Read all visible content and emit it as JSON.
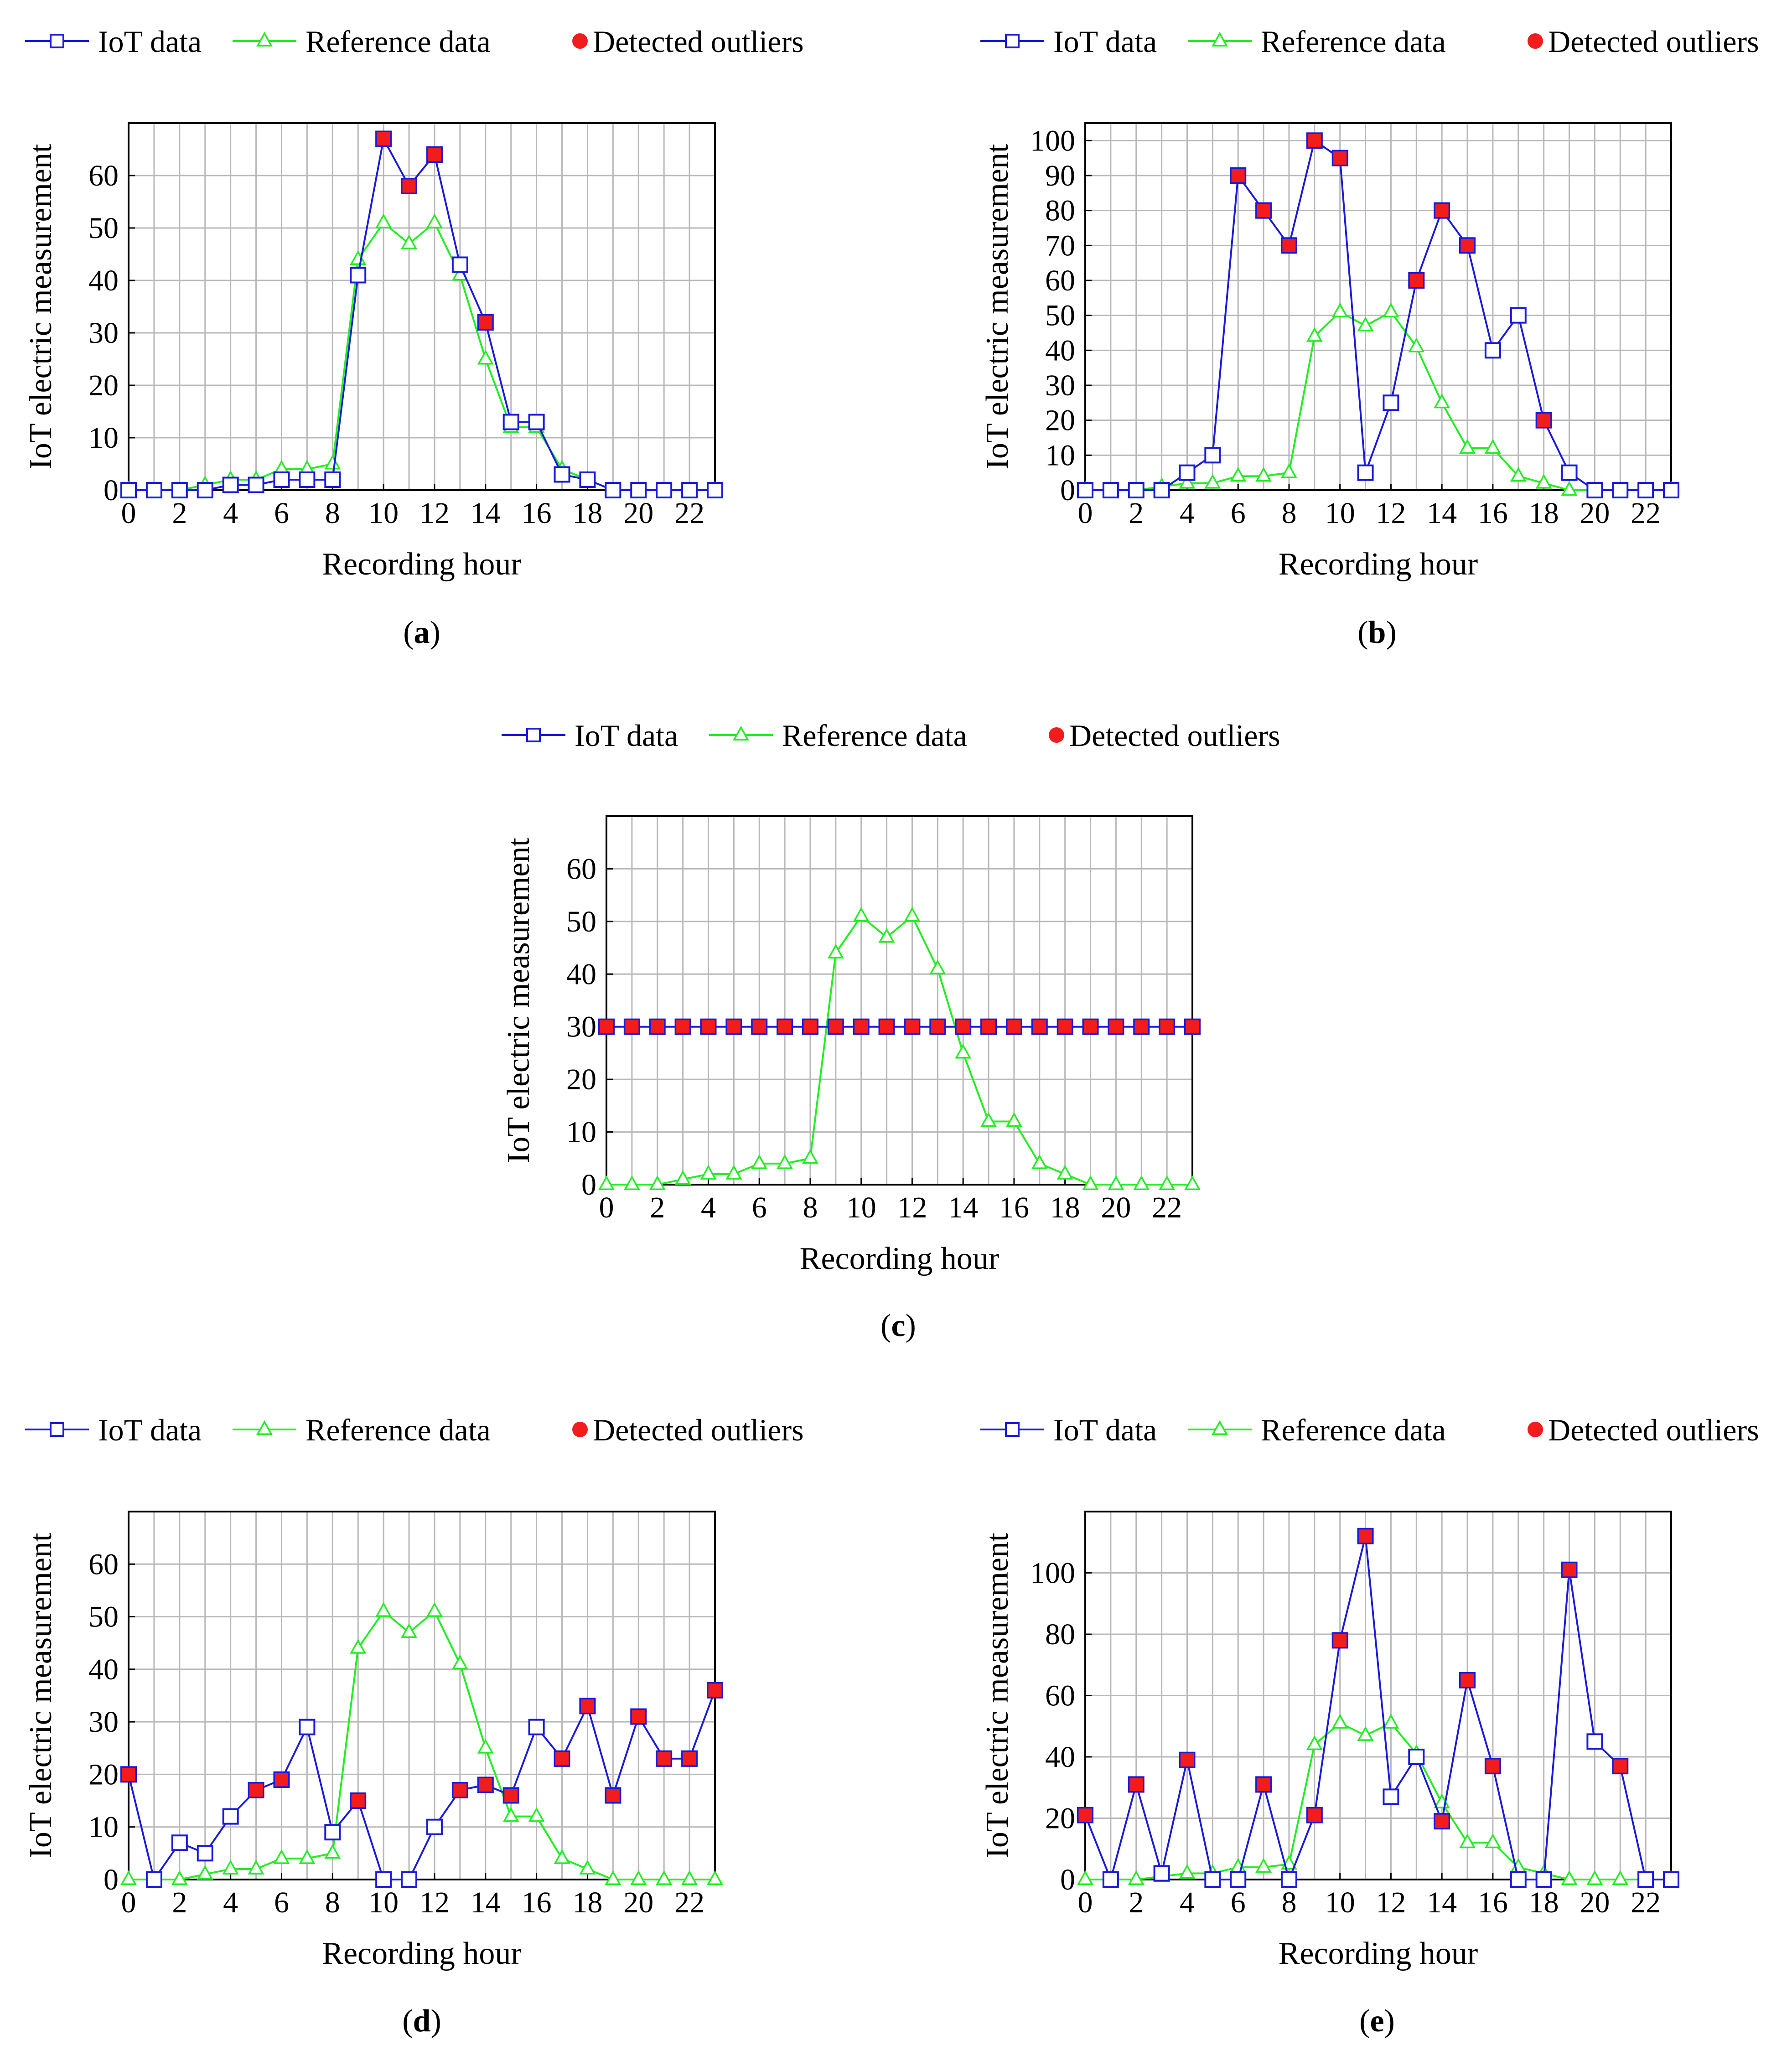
{
  "colors": {
    "iot": "#1a1adc",
    "reference": "#22ee22",
    "outlier": "#f21c1c",
    "grid": "#b8b8b8",
    "axis": "#000000"
  },
  "legend": {
    "iot_label": "IoT data",
    "reference_label": "Reference data",
    "outlier_label": "Detected outliers"
  },
  "chart_data": [
    {
      "panel": "a",
      "caption": "a",
      "type": "line",
      "xlabel": "Recording hour",
      "ylabel": "IoT electric measurement",
      "xlim": [
        0,
        23
      ],
      "ylim": [
        0,
        70
      ],
      "xticks": [
        0,
        2,
        4,
        6,
        8,
        10,
        12,
        14,
        16,
        18,
        20,
        22
      ],
      "yticks": [
        0,
        10,
        20,
        30,
        40,
        50,
        60
      ],
      "grid": true,
      "legend_position": "top",
      "x": [
        0,
        1,
        2,
        3,
        4,
        5,
        6,
        7,
        8,
        9,
        10,
        11,
        12,
        13,
        14,
        15,
        16,
        17,
        18,
        19,
        20,
        21,
        22,
        23
      ],
      "series": [
        {
          "name": "IoT data",
          "values": [
            0,
            0,
            0,
            0,
            1,
            1,
            2,
            2,
            2,
            41,
            67,
            58,
            64,
            43,
            32,
            13,
            13,
            3,
            2,
            0,
            0,
            0,
            0,
            0
          ]
        },
        {
          "name": "Reference data",
          "values": [
            0,
            0,
            0,
            1,
            2,
            2,
            4,
            4,
            5,
            44,
            51,
            47,
            51,
            41,
            25,
            12,
            12,
            4,
            2,
            0,
            0,
            0,
            0,
            0
          ]
        }
      ],
      "outliers": {
        "x": [
          10,
          11,
          12,
          14
        ],
        "values": [
          67,
          58,
          64,
          32
        ]
      }
    },
    {
      "panel": "b",
      "caption": "b",
      "type": "line",
      "xlabel": "Recording hour",
      "ylabel": "IoT electric measurement",
      "xlim": [
        0,
        23
      ],
      "ylim": [
        0,
        105
      ],
      "xticks": [
        0,
        2,
        4,
        6,
        8,
        10,
        12,
        14,
        16,
        18,
        20,
        22
      ],
      "yticks": [
        0,
        10,
        20,
        30,
        40,
        50,
        60,
        70,
        80,
        90,
        100
      ],
      "grid": true,
      "legend_position": "top",
      "x": [
        0,
        1,
        2,
        3,
        4,
        5,
        6,
        7,
        8,
        9,
        10,
        11,
        12,
        13,
        14,
        15,
        16,
        17,
        18,
        19,
        20,
        21,
        22,
        23
      ],
      "series": [
        {
          "name": "IoT data",
          "values": [
            0,
            0,
            0,
            0,
            5,
            10,
            90,
            80,
            70,
            100,
            95,
            5,
            25,
            60,
            80,
            70,
            40,
            50,
            20,
            5,
            0,
            0,
            0,
            0
          ]
        },
        {
          "name": "Reference data",
          "values": [
            0,
            0,
            0,
            1,
            2,
            2,
            4,
            4,
            5,
            44,
            51,
            47,
            51,
            41,
            25,
            12,
            12,
            4,
            2,
            0,
            0,
            0,
            0,
            0
          ]
        }
      ],
      "outliers": {
        "x": [
          6,
          7,
          8,
          9,
          10,
          13,
          14,
          15,
          18
        ],
        "values": [
          90,
          80,
          70,
          100,
          95,
          60,
          80,
          70,
          20
        ]
      }
    },
    {
      "panel": "c",
      "caption": "c",
      "type": "line",
      "xlabel": "Recording hour",
      "ylabel": "IoT electric measurement",
      "xlim": [
        0,
        23
      ],
      "ylim": [
        0,
        70
      ],
      "xticks": [
        0,
        2,
        4,
        6,
        8,
        10,
        12,
        14,
        16,
        18,
        20,
        22
      ],
      "yticks": [
        0,
        10,
        20,
        30,
        40,
        50,
        60
      ],
      "grid": true,
      "legend_position": "top",
      "x": [
        0,
        1,
        2,
        3,
        4,
        5,
        6,
        7,
        8,
        9,
        10,
        11,
        12,
        13,
        14,
        15,
        16,
        17,
        18,
        19,
        20,
        21,
        22,
        23
      ],
      "series": [
        {
          "name": "IoT data",
          "values": [
            30,
            30,
            30,
            30,
            30,
            30,
            30,
            30,
            30,
            30,
            30,
            30,
            30,
            30,
            30,
            30,
            30,
            30,
            30,
            30,
            30,
            30,
            30,
            30
          ]
        },
        {
          "name": "Reference data",
          "values": [
            0,
            0,
            0,
            1,
            2,
            2,
            4,
            4,
            5,
            44,
            51,
            47,
            51,
            41,
            25,
            12,
            12,
            4,
            2,
            0,
            0,
            0,
            0,
            0
          ]
        }
      ],
      "outliers": {
        "x": [
          0,
          1,
          2,
          3,
          4,
          5,
          6,
          7,
          8,
          9,
          10,
          11,
          12,
          13,
          14,
          15,
          16,
          17,
          18,
          19,
          20,
          21,
          22,
          23
        ],
        "values": [
          30,
          30,
          30,
          30,
          30,
          30,
          30,
          30,
          30,
          30,
          30,
          30,
          30,
          30,
          30,
          30,
          30,
          30,
          30,
          30,
          30,
          30,
          30,
          30
        ]
      }
    },
    {
      "panel": "d",
      "caption": "d",
      "type": "line",
      "xlabel": "Recording hour",
      "ylabel": "IoT electric measurement",
      "xlim": [
        0,
        23
      ],
      "ylim": [
        0,
        70
      ],
      "xticks": [
        0,
        2,
        4,
        6,
        8,
        10,
        12,
        14,
        16,
        18,
        20,
        22
      ],
      "yticks": [
        0,
        10,
        20,
        30,
        40,
        50,
        60
      ],
      "grid": true,
      "legend_position": "top",
      "x": [
        0,
        1,
        2,
        3,
        4,
        5,
        6,
        7,
        8,
        9,
        10,
        11,
        12,
        13,
        14,
        15,
        16,
        17,
        18,
        19,
        20,
        21,
        22,
        23
      ],
      "series": [
        {
          "name": "IoT data",
          "values": [
            20,
            0,
            7,
            5,
            12,
            17,
            19,
            29,
            9,
            15,
            0,
            0,
            10,
            17,
            18,
            16,
            29,
            23,
            33,
            16,
            31,
            23,
            23,
            36
          ]
        },
        {
          "name": "Reference data",
          "values": [
            0,
            0,
            0,
            1,
            2,
            2,
            4,
            4,
            5,
            44,
            51,
            47,
            51,
            41,
            25,
            12,
            12,
            4,
            2,
            0,
            0,
            0,
            0,
            0
          ]
        }
      ],
      "outliers": {
        "x": [
          0,
          5,
          6,
          9,
          13,
          14,
          15,
          17,
          18,
          19,
          20,
          21,
          22,
          23
        ],
        "values": [
          20,
          17,
          19,
          15,
          17,
          18,
          16,
          23,
          33,
          16,
          31,
          23,
          23,
          36
        ]
      }
    },
    {
      "panel": "e",
      "caption": "e",
      "type": "line",
      "xlabel": "Recording hour",
      "ylabel": "IoT electric measurement",
      "xlim": [
        0,
        23
      ],
      "ylim": [
        0,
        120
      ],
      "xticks": [
        0,
        2,
        4,
        6,
        8,
        10,
        12,
        14,
        16,
        18,
        20,
        22
      ],
      "yticks": [
        0,
        20,
        40,
        60,
        80,
        100
      ],
      "grid": true,
      "legend_position": "top",
      "x": [
        0,
        1,
        2,
        3,
        4,
        5,
        6,
        7,
        8,
        9,
        10,
        11,
        12,
        13,
        14,
        15,
        16,
        17,
        18,
        19,
        20,
        21,
        22,
        23
      ],
      "series": [
        {
          "name": "IoT data",
          "values": [
            21,
            0,
            31,
            2,
            39,
            0,
            0,
            31,
            0,
            21,
            78,
            112,
            27,
            40,
            19,
            65,
            37,
            0,
            0,
            101,
            45,
            37,
            0,
            0
          ]
        },
        {
          "name": "Reference data",
          "values": [
            0,
            0,
            0,
            1,
            2,
            2,
            4,
            4,
            5,
            44,
            51,
            47,
            51,
            41,
            25,
            12,
            12,
            4,
            2,
            0,
            0,
            0,
            0,
            0
          ]
        }
      ],
      "outliers": {
        "x": [
          0,
          2,
          4,
          7,
          9,
          10,
          11,
          14,
          15,
          16,
          19,
          21
        ],
        "values": [
          21,
          31,
          39,
          31,
          21,
          78,
          112,
          19,
          65,
          37,
          101,
          37
        ]
      }
    }
  ]
}
